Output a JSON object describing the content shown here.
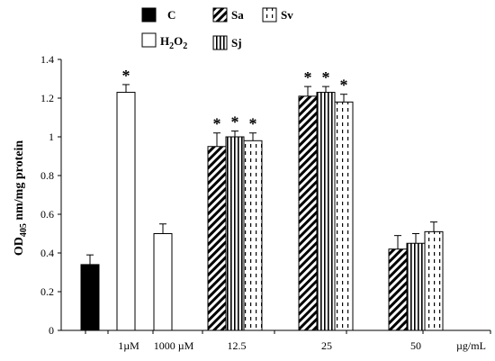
{
  "chart_data": {
    "type": "bar",
    "ylabel": {
      "main": "OD",
      "sub": "405",
      "rest": " nm/mg protein"
    },
    "ylim": [
      0,
      1.4
    ],
    "yticks": [
      0,
      0.2,
      0.4,
      0.6,
      0.8,
      1.0,
      1.2,
      1.4
    ],
    "ytick_labels": [
      "0",
      "0.2",
      "0.4",
      "0.6",
      "0.8",
      "1",
      "1.2",
      "1.4"
    ],
    "x_unit_label": "µg/mL",
    "legend": [
      {
        "key": "C",
        "label": "C",
        "pattern": "solid-black"
      },
      {
        "key": "H2O2",
        "label": "H",
        "label_sub": "2",
        "label_mid": "O",
        "label_sub2": "2",
        "pattern": "white"
      },
      {
        "key": "Sa",
        "label": "Sa",
        "pattern": "diagonal"
      },
      {
        "key": "Sj",
        "label": "Sj",
        "pattern": "vertical"
      },
      {
        "key": "Sv",
        "label": "Sv",
        "pattern": "dashed"
      }
    ],
    "groups": [
      {
        "label": "",
        "bars": [
          {
            "series": "C",
            "value": 0.34,
            "error": 0.05,
            "significant": false
          }
        ]
      },
      {
        "label": "1µM",
        "bars": [
          {
            "series": "H2O2",
            "value": 1.23,
            "error": 0.04,
            "significant": true
          }
        ]
      },
      {
        "label": "1000 µM",
        "bars": [
          {
            "series": "H2O2",
            "value": 0.5,
            "error": 0.05,
            "significant": false
          }
        ]
      },
      {
        "label": "12.5",
        "bars": [
          {
            "series": "Sa",
            "value": 0.95,
            "error": 0.07,
            "significant": true
          },
          {
            "series": "Sj",
            "value": 1.0,
            "error": 0.03,
            "significant": true
          },
          {
            "series": "Sv",
            "value": 0.98,
            "error": 0.04,
            "significant": true
          }
        ]
      },
      {
        "label": "25",
        "bars": [
          {
            "series": "Sa",
            "value": 1.21,
            "error": 0.05,
            "significant": true
          },
          {
            "series": "Sj",
            "value": 1.23,
            "error": 0.03,
            "significant": true
          },
          {
            "series": "Sv",
            "value": 1.18,
            "error": 0.04,
            "significant": true
          }
        ]
      },
      {
        "label": "50",
        "bars": [
          {
            "series": "Sa",
            "value": 0.42,
            "error": 0.07,
            "significant": false
          },
          {
            "series": "Sj",
            "value": 0.45,
            "error": 0.05,
            "significant": false
          },
          {
            "series": "Sv",
            "value": 0.51,
            "error": 0.05,
            "significant": false
          }
        ]
      }
    ],
    "significance_marker": "*",
    "grid": false
  }
}
